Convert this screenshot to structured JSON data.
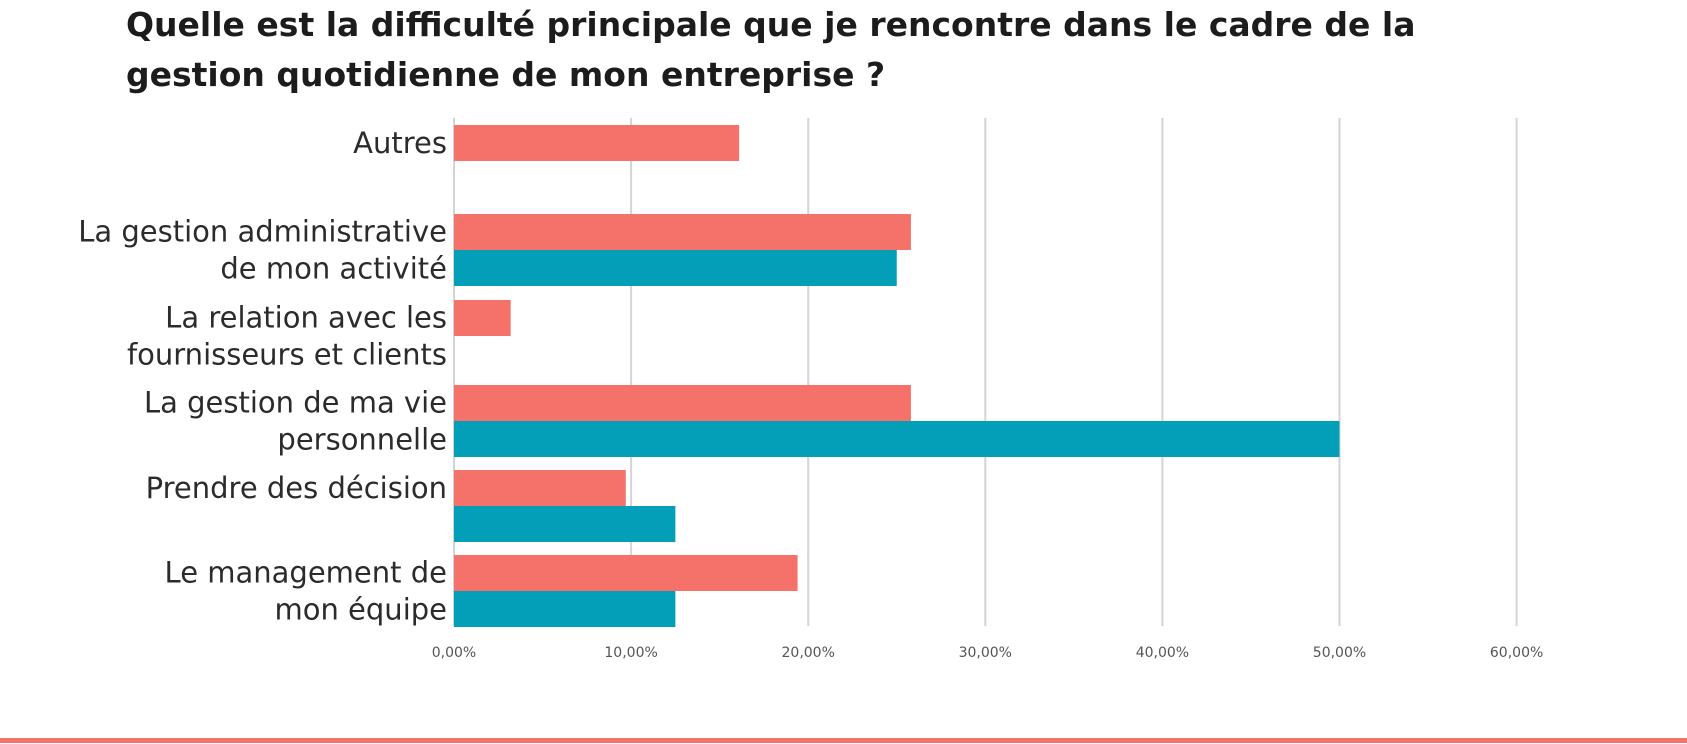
{
  "page": {
    "title": "Quelle est la difficulté principale que je rencontre dans le cadre de la gestion quotidienne de mon entreprise ?"
  },
  "colors": {
    "series1": "#f4726a",
    "series2": "#039fb9",
    "grid": "#d4d4d4",
    "rule": "#f4726a"
  },
  "chart_data": {
    "type": "bar",
    "orientation": "horizontal",
    "title": "Quelle est la difficulté principale que je rencontre dans le cadre de la gestion quotidienne de mon entreprise ?",
    "xlabel": "",
    "ylabel": "",
    "xlim": [
      0,
      60
    ],
    "x_ticks": [
      "0,00%",
      "10,00%",
      "20,00%",
      "30,00%",
      "40,00%",
      "50,00%",
      "60,00%"
    ],
    "grid": "vertical",
    "legend": "none",
    "categories": [
      [
        "Autres"
      ],
      [
        "La gestion administrative",
        "de  mon activité"
      ],
      [
        "La relation avec les",
        "fournisseurs et clients"
      ],
      [
        "La gestion de ma vie",
        "personnelle"
      ],
      [
        "Prendre des décision"
      ],
      [
        "Le management de",
        "mon équipe"
      ]
    ],
    "series": [
      {
        "values": [
          16.1,
          25.8,
          3.2,
          25.8,
          9.7,
          19.4
        ]
      },
      {
        "values": [
          0,
          25.0,
          0,
          50.0,
          12.5,
          12.5
        ]
      }
    ]
  }
}
